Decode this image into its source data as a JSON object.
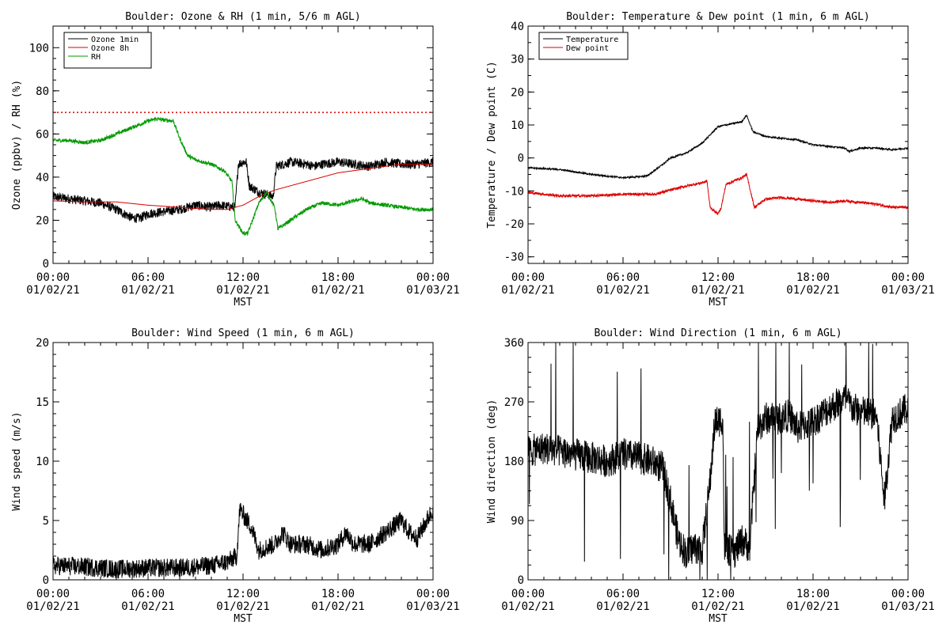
{
  "chart_data": [
    {
      "type": "line",
      "title": "Boulder: Ozone & RH (1 min, 5/6 m AGL)",
      "xlabel": "MST",
      "ylabel": "Ozone (ppbv) / RH (%)",
      "ylim": [
        0,
        110
      ],
      "yticks": [
        0,
        20,
        40,
        60,
        80,
        100
      ],
      "xlim": [
        0,
        24
      ],
      "xticks": [
        {
          "time": "00:00",
          "date": "01/02/21"
        },
        {
          "time": "06:00",
          "date": "01/02/21"
        },
        {
          "time": "12:00",
          "date": "01/02/21"
        },
        {
          "time": "18:00",
          "date": "01/02/21"
        },
        {
          "time": "00:00",
          "date": "01/03/21"
        }
      ],
      "legend_position": "top-left",
      "threshold_line": {
        "y": 70,
        "color": "#dd0000",
        "style": "dotted"
      },
      "series": [
        {
          "name": "Ozone 1min",
          "color": "#000000",
          "noise": 2.2,
          "points": [
            [
              0,
              31
            ],
            [
              1,
              30
            ],
            [
              2,
              29
            ],
            [
              3,
              28
            ],
            [
              4,
              25
            ],
            [
              4.5,
              23
            ],
            [
              5,
              21
            ],
            [
              5.5,
              21
            ],
            [
              6,
              23
            ],
            [
              7,
              24
            ],
            [
              8,
              25
            ],
            [
              9,
              27
            ],
            [
              10,
              26
            ],
            [
              10.5,
              27
            ],
            [
              11.5,
              26
            ],
            [
              11.7,
              46
            ],
            [
              12,
              47
            ],
            [
              12.2,
              47
            ],
            [
              12.4,
              36
            ],
            [
              13,
              33
            ],
            [
              13.5,
              32
            ],
            [
              13.9,
              31
            ],
            [
              14.1,
              45
            ],
            [
              15,
              47
            ],
            [
              16,
              46
            ],
            [
              16.5,
              45
            ],
            [
              17,
              46
            ],
            [
              18,
              47
            ],
            [
              19,
              46
            ],
            [
              20,
              45
            ],
            [
              21,
              47
            ],
            [
              22,
              46
            ],
            [
              23,
              46
            ],
            [
              24,
              47
            ]
          ]
        },
        {
          "name": "Ozone 8h",
          "color": "#dd0000",
          "noise": 0,
          "points": [
            [
              0,
              29
            ],
            [
              2,
              28.5
            ],
            [
              4,
              28.5
            ],
            [
              6,
              27
            ],
            [
              8,
              26
            ],
            [
              10,
              25
            ],
            [
              11,
              25
            ],
            [
              12,
              27
            ],
            [
              13,
              31
            ],
            [
              14,
              34
            ],
            [
              15,
              36
            ],
            [
              16,
              38
            ],
            [
              17,
              40
            ],
            [
              18,
              42
            ],
            [
              19,
              43
            ],
            [
              20,
              44
            ],
            [
              21,
              45
            ],
            [
              22,
              46
            ],
            [
              23,
              46
            ],
            [
              24,
              46
            ]
          ]
        },
        {
          "name": "RH",
          "color": "#009900",
          "noise": 0.9,
          "points": [
            [
              0,
              57
            ],
            [
              1,
              57
            ],
            [
              2,
              56
            ],
            [
              3,
              57
            ],
            [
              4,
              60
            ],
            [
              5,
              63
            ],
            [
              6,
              66
            ],
            [
              6.5,
              67
            ],
            [
              7,
              66.5
            ],
            [
              7.6,
              66
            ],
            [
              8,
              58
            ],
            [
              8.5,
              50
            ],
            [
              9,
              48
            ],
            [
              10,
              46
            ],
            [
              10.8,
              43
            ],
            [
              11.3,
              38
            ],
            [
              11.5,
              20
            ],
            [
              12,
              14
            ],
            [
              12.3,
              14
            ],
            [
              12.7,
              22
            ],
            [
              13,
              28
            ],
            [
              13.5,
              33
            ],
            [
              14,
              26
            ],
            [
              14.2,
              16
            ],
            [
              15,
              20
            ],
            [
              16,
              25
            ],
            [
              17,
              28
            ],
            [
              18,
              27
            ],
            [
              19,
              29
            ],
            [
              19.5,
              30
            ],
            [
              20,
              28
            ],
            [
              21,
              27
            ],
            [
              22,
              26
            ],
            [
              23,
              25
            ],
            [
              24,
              25
            ]
          ]
        }
      ]
    },
    {
      "type": "line",
      "title": "Boulder: Temperature & Dew point (1 min, 6 m AGL)",
      "xlabel": "MST",
      "ylabel": "Temperature / Dew point (C)",
      "ylim": [
        -32,
        40
      ],
      "yticks": [
        -30,
        -20,
        -10,
        0,
        10,
        20,
        30,
        40
      ],
      "xlim": [
        0,
        24
      ],
      "xticks": [
        {
          "time": "00:00",
          "date": "01/02/21"
        },
        {
          "time": "06:00",
          "date": "01/02/21"
        },
        {
          "time": "12:00",
          "date": "01/02/21"
        },
        {
          "time": "18:00",
          "date": "01/02/21"
        },
        {
          "time": "00:00",
          "date": "01/03/21"
        }
      ],
      "legend_position": "top-left",
      "series": [
        {
          "name": "Temperature",
          "color": "#000000",
          "noise": 0.25,
          "points": [
            [
              0,
              -3
            ],
            [
              2,
              -3.5
            ],
            [
              4,
              -5
            ],
            [
              6,
              -6
            ],
            [
              7.5,
              -5.5
            ],
            [
              8.5,
              -2
            ],
            [
              9,
              0
            ],
            [
              10,
              1.5
            ],
            [
              11,
              4.5
            ],
            [
              11.5,
              7
            ],
            [
              12,
              9.5
            ],
            [
              12.5,
              10
            ],
            [
              13,
              10.5
            ],
            [
              13.5,
              11
            ],
            [
              13.8,
              13
            ],
            [
              14.2,
              8
            ],
            [
              15,
              6.5
            ],
            [
              16,
              6
            ],
            [
              17,
              5.5
            ],
            [
              18,
              4
            ],
            [
              19,
              3.5
            ],
            [
              20,
              3
            ],
            [
              20.3,
              2
            ],
            [
              21,
              3
            ],
            [
              22,
              3
            ],
            [
              23,
              2.5
            ],
            [
              24,
              3
            ]
          ]
        },
        {
          "name": "Dew point",
          "color": "#dd0000",
          "noise": 0.4,
          "points": [
            [
              0,
              -10.5
            ],
            [
              2,
              -11.5
            ],
            [
              4,
              -11.5
            ],
            [
              6,
              -11
            ],
            [
              8,
              -11
            ],
            [
              8.8,
              -10
            ],
            [
              10,
              -8.5
            ],
            [
              11,
              -7.5
            ],
            [
              11.3,
              -7
            ],
            [
              11.5,
              -15
            ],
            [
              12,
              -17
            ],
            [
              12.2,
              -15
            ],
            [
              12.5,
              -8
            ],
            [
              13,
              -7
            ],
            [
              13.5,
              -6
            ],
            [
              13.8,
              -5
            ],
            [
              14,
              -9
            ],
            [
              14.3,
              -15
            ],
            [
              15,
              -12.5
            ],
            [
              16,
              -12
            ],
            [
              17,
              -12.5
            ],
            [
              18,
              -13
            ],
            [
              19,
              -13.5
            ],
            [
              20,
              -13
            ],
            [
              21,
              -13.5
            ],
            [
              22,
              -14
            ],
            [
              23,
              -15
            ],
            [
              24,
              -15
            ]
          ]
        }
      ]
    },
    {
      "type": "line",
      "title": "Boulder: Wind Speed (1 min, 6 m AGL)",
      "xlabel": "MST",
      "ylabel": "Wind speed (m/s)",
      "ylim": [
        0,
        20
      ],
      "yticks": [
        0,
        5,
        10,
        15,
        20
      ],
      "xlim": [
        0,
        24
      ],
      "xticks": [
        {
          "time": "00:00",
          "date": "01/02/21"
        },
        {
          "time": "06:00",
          "date": "01/02/21"
        },
        {
          "time": "12:00",
          "date": "01/02/21"
        },
        {
          "time": "18:00",
          "date": "01/02/21"
        },
        {
          "time": "00:00",
          "date": "01/03/21"
        }
      ],
      "series": [
        {
          "name": "",
          "color": "#000000",
          "noise": 0.8,
          "points": [
            [
              0,
              1.2
            ],
            [
              2,
              1.1
            ],
            [
              4,
              0.9
            ],
            [
              6,
              1
            ],
            [
              8,
              1
            ],
            [
              9,
              1.1
            ],
            [
              10,
              1.2
            ],
            [
              11,
              1.5
            ],
            [
              11.6,
              2
            ],
            [
              11.8,
              6
            ],
            [
              12,
              5.5
            ],
            [
              12.5,
              4.5
            ],
            [
              13,
              2.5
            ],
            [
              14,
              3
            ],
            [
              14.5,
              4
            ],
            [
              15,
              3
            ],
            [
              16,
              3
            ],
            [
              17,
              2.5
            ],
            [
              18,
              3
            ],
            [
              18.5,
              4
            ],
            [
              19,
              3
            ],
            [
              20,
              3
            ],
            [
              21,
              4
            ],
            [
              22,
              5
            ],
            [
              22.5,
              4
            ],
            [
              23,
              3.5
            ],
            [
              24,
              6
            ]
          ]
        }
      ]
    },
    {
      "type": "line",
      "title": "Boulder: Wind Direction (1 min, 6 m AGL)",
      "xlabel": "MST",
      "ylabel": "Wind direction (deg)",
      "ylim": [
        0,
        360
      ],
      "yticks": [
        0,
        90,
        180,
        270,
        360
      ],
      "xlim": [
        0,
        24
      ],
      "xticks": [
        {
          "time": "00:00",
          "date": "01/02/21"
        },
        {
          "time": "06:00",
          "date": "01/02/21"
        },
        {
          "time": "12:00",
          "date": "01/02/21"
        },
        {
          "time": "18:00",
          "date": "01/02/21"
        },
        {
          "time": "00:00",
          "date": "01/03/21"
        }
      ],
      "series": [
        {
          "name": "",
          "color": "#000000",
          "noise": 25,
          "points": [
            [
              0,
              195
            ],
            [
              1,
              200
            ],
            [
              2,
              195
            ],
            [
              3,
              190
            ],
            [
              4,
              185
            ],
            [
              5,
              180
            ],
            [
              6,
              190
            ],
            [
              7,
              185
            ],
            [
              7.8,
              180
            ],
            [
              8.5,
              170
            ],
            [
              9,
              120
            ],
            [
              9.5,
              60
            ],
            [
              10,
              40
            ],
            [
              10.5,
              50
            ],
            [
              11,
              45
            ],
            [
              11.5,
              150
            ],
            [
              11.8,
              240
            ],
            [
              12,
              240
            ],
            [
              12.3,
              245
            ],
            [
              12.4,
              50
            ],
            [
              13,
              40
            ],
            [
              13.5,
              60
            ],
            [
              14,
              50
            ],
            [
              14.5,
              230
            ],
            [
              15,
              245
            ],
            [
              16,
              245
            ],
            [
              16.5,
              250
            ],
            [
              17,
              230
            ],
            [
              18,
              240
            ],
            [
              19,
              260
            ],
            [
              20,
              275
            ],
            [
              20.5,
              260
            ],
            [
              21,
              255
            ],
            [
              22,
              250
            ],
            [
              22.5,
              120
            ],
            [
              23,
              245
            ],
            [
              24,
              260
            ]
          ]
        }
      ]
    }
  ]
}
